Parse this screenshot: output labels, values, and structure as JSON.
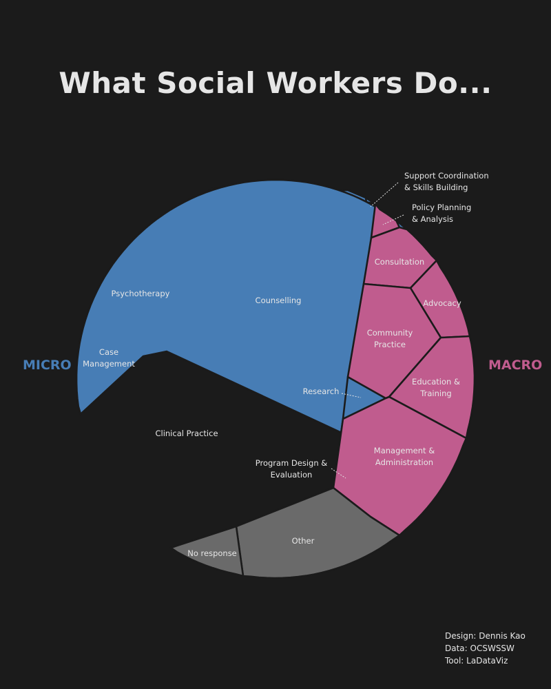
{
  "colors": {
    "background": "#1b1b1b",
    "micro": "#477db5",
    "macro": "#c05c8e",
    "other": "#6a6a6a",
    "border": "#1b1b1b",
    "text": "#e6e6e6"
  },
  "chart_data": {
    "type": "voronoi-treemap",
    "title": "What Social Workers Do...",
    "groups": [
      {
        "name": "MICRO",
        "color": "#477db5",
        "items": [
          "Counselling",
          "Psychotherapy",
          "Case Management",
          "Clinical Practice",
          "Research",
          "Program Design & Evaluation",
          "Support Coordination & Skills Building"
        ]
      },
      {
        "name": "MACRO",
        "color": "#c05c8e",
        "items": [
          "Policy Planning & Analysis",
          "Consultation",
          "Advocacy",
          "Community Practice",
          "Education & Training",
          "Management & Administration"
        ]
      },
      {
        "name": "",
        "color": "#6a6a6a",
        "items": [
          "Other",
          "No response"
        ]
      }
    ],
    "cells": [
      {
        "label": "Counselling",
        "group": "MICRO"
      },
      {
        "label": "Psychotherapy",
        "group": "MICRO"
      },
      {
        "label": "Case Management",
        "group": "MICRO",
        "lines": [
          "Case",
          "Management"
        ]
      },
      {
        "label": "Clinical Practice",
        "group": "MICRO"
      },
      {
        "label": "Research",
        "group": "MICRO"
      },
      {
        "label": "Program Design & Evaluation",
        "group": "MICRO",
        "lines": [
          "Program Design &",
          "Evaluation"
        ]
      },
      {
        "label": "Support Coordination & Skills Building",
        "group": "MICRO",
        "lines": [
          "Support Coordination",
          "& Skills Building"
        ]
      },
      {
        "label": "Policy Planning & Analysis",
        "group": "MACRO",
        "lines": [
          "Policy Planning",
          "& Analysis"
        ]
      },
      {
        "label": "Consultation",
        "group": "MACRO"
      },
      {
        "label": "Advocacy",
        "group": "MACRO"
      },
      {
        "label": "Community Practice",
        "group": "MACRO",
        "lines": [
          "Community",
          "Practice"
        ]
      },
      {
        "label": "Education & Training",
        "group": "MACRO",
        "lines": [
          "Education &",
          "Training"
        ]
      },
      {
        "label": "Management & Administration",
        "group": "MACRO",
        "lines": [
          "Management &",
          "Administration"
        ]
      },
      {
        "label": "Other",
        "group": ""
      },
      {
        "label": "No response",
        "group": ""
      }
    ]
  },
  "credits": {
    "design": "Design: Dennis Kao",
    "data": "Data: OCSWSSW",
    "tool": "Tool: LaDataViz"
  }
}
